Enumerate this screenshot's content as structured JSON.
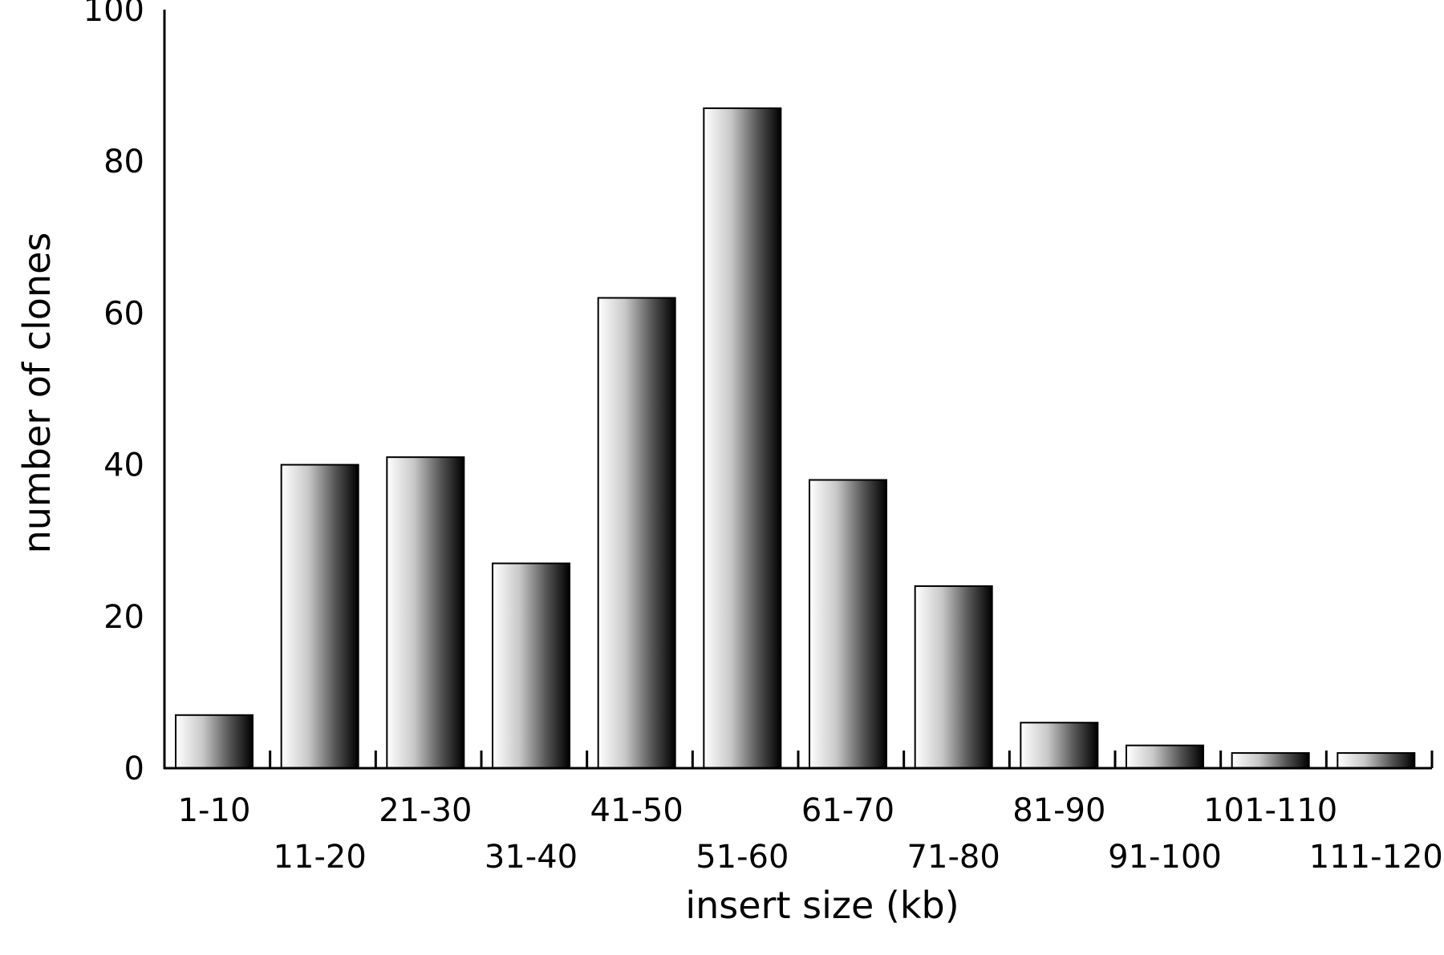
{
  "chart_data": {
    "type": "bar",
    "title": "",
    "xlabel": "insert size (kb)",
    "ylabel": "number of clones",
    "categories": [
      "1-10",
      "11-20",
      "21-30",
      "31-40",
      "41-50",
      "51-60",
      "61-70",
      "71-80",
      "81-90",
      "91-100",
      "101-110",
      "111-120"
    ],
    "values": [
      7,
      40,
      41,
      27,
      62,
      87,
      38,
      24,
      6,
      3,
      2,
      2
    ],
    "ylim": [
      0,
      100
    ],
    "yticks": [
      0,
      20,
      40,
      60,
      80,
      100
    ],
    "grid": false,
    "legend": "none",
    "colors": {
      "bar_light": "#ffffff",
      "bar_dark": "#000000",
      "axis": "#000000"
    }
  }
}
